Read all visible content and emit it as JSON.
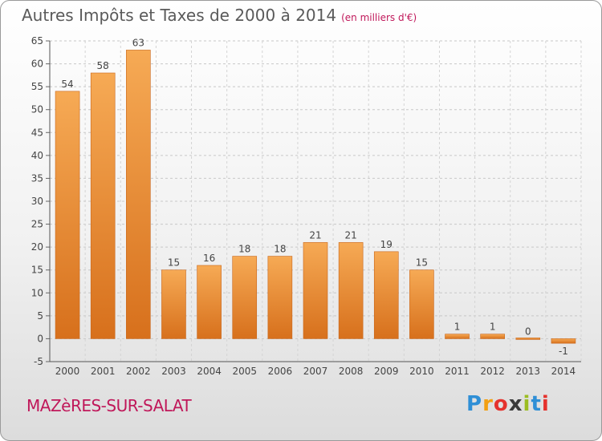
{
  "chart_data": {
    "type": "bar",
    "title": "Autres Impôts et Taxes de 2000 à 2014",
    "subtitle": "(en milliers d'€)",
    "categories": [
      "2000",
      "2001",
      "2002",
      "2003",
      "2004",
      "2005",
      "2006",
      "2007",
      "2008",
      "2009",
      "2010",
      "2011",
      "2012",
      "2013",
      "2014"
    ],
    "values": [
      54,
      58,
      63,
      15,
      16,
      18,
      18,
      21,
      21,
      19,
      15,
      1,
      1,
      0,
      -1
    ],
    "labels": [
      "54",
      "58",
      "63",
      "15",
      "16",
      "18",
      "18",
      "21",
      "21",
      "19",
      "15",
      "1",
      "1",
      "0",
      "-1"
    ],
    "ylim": [
      -5,
      65
    ],
    "yticks": [
      -5,
      0,
      5,
      10,
      15,
      20,
      25,
      30,
      35,
      40,
      45,
      50,
      55,
      60,
      65
    ],
    "xlabel": "",
    "ylabel": "",
    "grid": true,
    "bar_color": "#f39a3e",
    "bar_color_dark": "#d9711e"
  },
  "place": "MAZèRES-SUR-SALAT",
  "brand": {
    "letters": [
      "P",
      "r",
      "o",
      "x",
      "i",
      "t",
      "i"
    ],
    "colors": [
      "#2f8fd6",
      "#f3a012",
      "#e5322d",
      "#3a3a3a",
      "#9bbd22",
      "#2f8fd6",
      "#e5322d"
    ]
  }
}
